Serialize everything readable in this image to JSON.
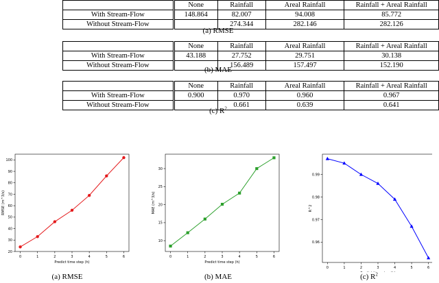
{
  "tables": [
    {
      "headers": [
        "",
        "None",
        "Rainfall",
        "Areal Rainfall",
        "Rainfall + Areal Rainfall"
      ],
      "rows": [
        [
          "With Stream-Flow",
          "148.864",
          "82.007",
          "94.008",
          "85.772"
        ],
        [
          "Without Stream-Flow",
          "",
          "274.344",
          "282.146",
          "282.126"
        ]
      ],
      "caption": "(a) RMSE"
    },
    {
      "headers": [
        "",
        "None",
        "Rainfall",
        "Areal Rainfall",
        "Rainfall + Areal Rainfall"
      ],
      "rows": [
        [
          "With Stream-Flow",
          "43.188",
          "27.752",
          "29.751",
          "30.138"
        ],
        [
          "Without Stream-Flow",
          "",
          "156.489",
          "157.497",
          "152.190"
        ]
      ],
      "caption": "(b) MAE"
    },
    {
      "headers": [
        "",
        "None",
        "Rainfall",
        "Areal Rainfall",
        "Rainfall + Areal Rainfall"
      ],
      "rows": [
        [
          "With Stream-Flow",
          "0.900",
          "0.970",
          "0.960",
          "0.967"
        ],
        [
          "Without Stream-Flow",
          "",
          "0.661",
          "0.639",
          "0.641"
        ]
      ],
      "caption_prefix": "(c) R",
      "caption_sup": "2"
    }
  ],
  "figure_captions": [
    {
      "text": "(a) RMSE"
    },
    {
      "text": "(b) MAE"
    },
    {
      "prefix": "(c) R",
      "sup": "2"
    }
  ],
  "chart_data": [
    {
      "type": "line",
      "x": [
        0,
        1,
        2,
        3,
        4,
        5,
        6
      ],
      "values": [
        24,
        33,
        46,
        56,
        69,
        86,
        102
      ],
      "xlabel": "Predict time step (h)",
      "ylabel": "RMSE (m^3/s)",
      "xlim": [
        -0.3,
        6.3
      ],
      "ylim": [
        20,
        105
      ],
      "yticks": [
        20,
        30,
        40,
        50,
        60,
        70,
        80,
        90,
        100
      ],
      "xticks": [
        0,
        1,
        2,
        3,
        4,
        5,
        6
      ],
      "color": "#e41a1c",
      "marker": "circle",
      "grid": false
    },
    {
      "type": "line",
      "x": [
        0,
        1,
        2,
        3,
        4,
        5,
        6
      ],
      "values": [
        8.5,
        12.2,
        16.0,
        20.1,
        23.2,
        30.0,
        33.0
      ],
      "xlabel": "Predict time step (h)",
      "ylabel": "MAE (m^3/s)",
      "xlim": [
        -0.3,
        6.3
      ],
      "ylim": [
        7,
        34
      ],
      "yticks": [
        10,
        15,
        20,
        25,
        30
      ],
      "xticks": [
        0,
        1,
        2,
        3,
        4,
        5,
        6
      ],
      "color": "#2ca02c",
      "marker": "square",
      "grid": false
    },
    {
      "type": "line",
      "x": [
        0,
        1,
        2,
        3,
        4,
        5,
        6
      ],
      "values": [
        0.997,
        0.995,
        0.99,
        0.986,
        0.979,
        0.967,
        0.953
      ],
      "xlabel": "Predict time step (h)",
      "ylabel": "R^2",
      "xlim": [
        -0.3,
        6.3
      ],
      "ylim": [
        0.951,
        0.999
      ],
      "yticks": [
        0.96,
        0.97,
        0.98,
        0.99
      ],
      "xticks": [
        0,
        1,
        2,
        3,
        4,
        5,
        6
      ],
      "color": "#0000ff",
      "marker": "triangle",
      "grid": false
    }
  ]
}
